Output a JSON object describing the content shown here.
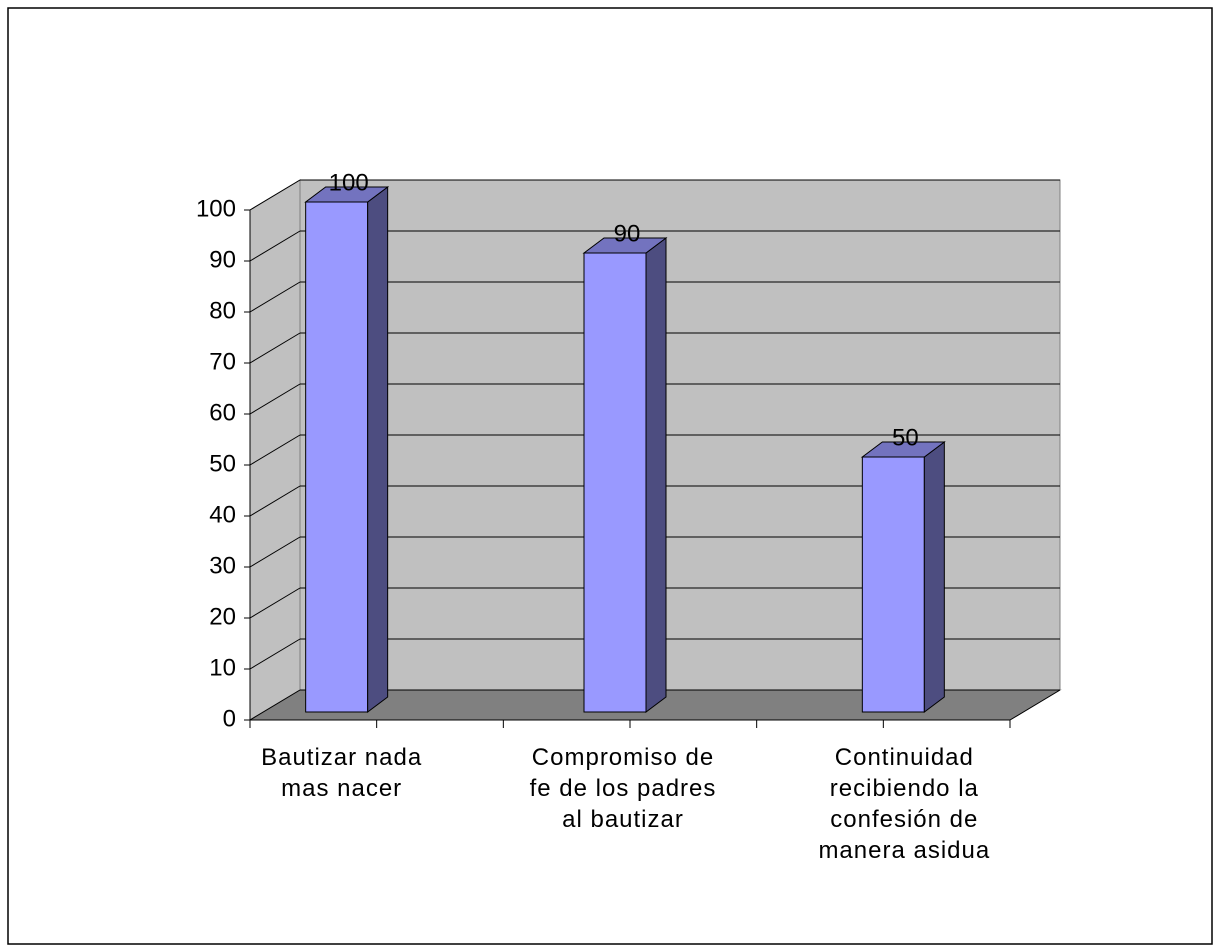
{
  "chart_data": {
    "type": "bar3d",
    "categories": [
      "Bautizar nada mas nacer",
      "Compromiso de fe de los padres al bautizar",
      "Continuidad recibiendo la confesión de manera asidua"
    ],
    "values": [
      100,
      90,
      50
    ],
    "color": "#9999ff",
    "ylim": [
      0,
      100
    ],
    "yticks": [
      0,
      10,
      20,
      30,
      40,
      50,
      60,
      70,
      80,
      90,
      100
    ],
    "grid": true
  }
}
